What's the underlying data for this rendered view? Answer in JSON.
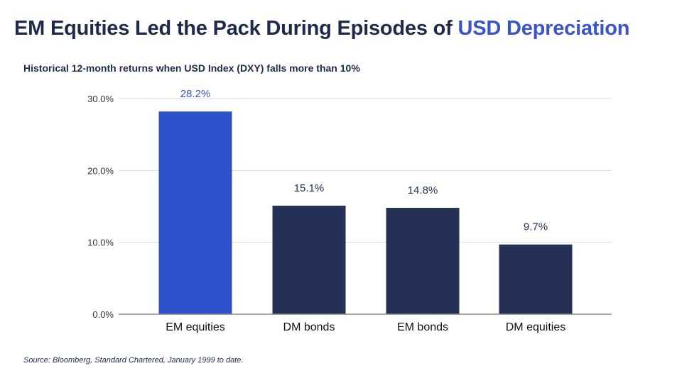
{
  "title": {
    "part1": "EM Equities Led the Pack During Episodes of ",
    "part2": "USD Depreciation"
  },
  "subtitle": "Historical 12-month returns when USD Index (DXY) falls more than 10%",
  "source": "Source: Bloomberg, Standard Chartered, January 1999 to date.",
  "colors": {
    "title": "#1e2a4a",
    "accent": "#3a55c8",
    "highlight_bar": "#2f52cc",
    "bar": "#243055",
    "grid": "#d9d9d9",
    "axis": "#888888",
    "tick_text": "#333333",
    "highlight_label": "#3a55c8",
    "label": "#243055"
  },
  "chart_data": {
    "type": "bar",
    "categories": [
      "EM equities",
      "DM bonds",
      "EM bonds",
      "DM equities"
    ],
    "values": [
      28.2,
      15.1,
      14.8,
      9.7
    ],
    "data_labels": [
      "28.2%",
      "15.1%",
      "14.8%",
      "9.7%"
    ],
    "highlight_index": 0,
    "yticks": [
      0,
      10,
      20,
      30
    ],
    "ytick_labels": [
      "0.0%",
      "10.0%",
      "20.0%",
      "30.0%"
    ],
    "ylim": [
      0,
      30
    ],
    "grid": true,
    "xlabel": "",
    "ylabel": ""
  }
}
